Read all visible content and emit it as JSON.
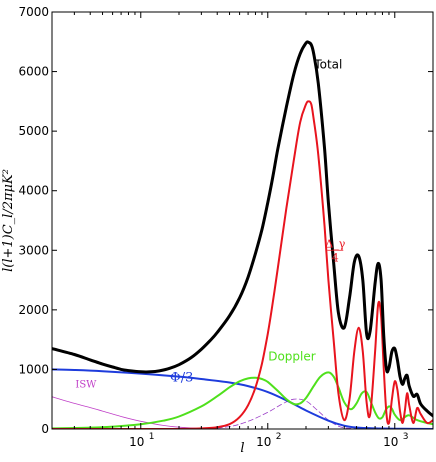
{
  "chart_data": {
    "type": "line",
    "xlabel": "l",
    "ylabel": "l(l+1)C_l/2πμK²",
    "xscale": "log",
    "xlim": [
      2,
      2000
    ],
    "ylim": [
      0,
      7000
    ],
    "xticks": [
      {
        "value": 10,
        "base": "10",
        "exp": "1"
      },
      {
        "value": 100,
        "base": "10",
        "exp": "2"
      },
      {
        "value": 1000,
        "base": "10",
        "exp": "3"
      }
    ],
    "yticks": [
      "0",
      "1000",
      "2000",
      "3000",
      "4000",
      "5000",
      "6000",
      "7000"
    ],
    "yticks_values": [
      0,
      1000,
      2000,
      3000,
      4000,
      5000,
      6000,
      7000
    ],
    "grid": false,
    "series": [
      {
        "name": "Total",
        "color": "#000000",
        "style": "solid",
        "x": [
          2,
          3,
          4,
          5,
          6,
          7,
          8,
          10,
          12,
          14,
          17,
          20,
          25,
          30,
          35,
          40,
          50,
          60,
          70,
          80,
          90,
          100,
          110,
          120,
          140,
          160,
          180,
          200,
          210,
          220,
          230,
          250,
          280,
          300,
          330,
          360,
          400,
          440,
          480,
          520,
          560,
          600,
          640,
          700,
          740,
          780,
          820,
          860,
          900,
          950,
          1000,
          1050,
          1100,
          1150,
          1200,
          1250,
          1300,
          1400,
          1500,
          1600,
          1800,
          2000
        ],
        "y": [
          1350,
          1250,
          1160,
          1090,
          1040,
          1000,
          980,
          960,
          960,
          975,
          1020,
          1080,
          1200,
          1340,
          1480,
          1620,
          1900,
          2200,
          2550,
          2950,
          3350,
          3800,
          4250,
          4700,
          5400,
          5950,
          6300,
          6480,
          6490,
          6450,
          6300,
          5800,
          4700,
          3800,
          2800,
          1950,
          1700,
          2200,
          2800,
          2900,
          2500,
          1600,
          1650,
          2450,
          2780,
          2500,
          1550,
          1000,
          1030,
          1300,
          1350,
          1150,
          880,
          750,
          850,
          900,
          720,
          550,
          580,
          420,
          300,
          220
        ]
      },
      {
        "name": "Δ_γ/4",
        "color": "#e8141e",
        "style": "solid",
        "x": [
          2,
          5,
          10,
          20,
          30,
          40,
          50,
          60,
          70,
          80,
          90,
          100,
          110,
          120,
          140,
          160,
          180,
          200,
          210,
          220,
          230,
          250,
          280,
          300,
          330,
          360,
          400,
          440,
          480,
          520,
          560,
          600,
          640,
          700,
          740,
          780,
          820,
          860,
          900,
          950,
          1000,
          1050,
          1100,
          1150,
          1200,
          1250,
          1300,
          1400,
          1500,
          1600,
          1800,
          2000
        ],
        "y": [
          0,
          0,
          0,
          0,
          10,
          30,
          80,
          200,
          400,
          700,
          1100,
          1600,
          2150,
          2700,
          3700,
          4500,
          5150,
          5450,
          5500,
          5450,
          5200,
          4600,
          3400,
          2500,
          1500,
          600,
          150,
          500,
          1300,
          1700,
          1300,
          450,
          250,
          1300,
          2100,
          1900,
          1000,
          250,
          100,
          500,
          800,
          650,
          300,
          100,
          300,
          600,
          400,
          100,
          350,
          250,
          100,
          150
        ]
      },
      {
        "name": "Doppler",
        "color": "#4fe01c",
        "style": "solid",
        "x": [
          2,
          5,
          10,
          15,
          20,
          30,
          40,
          50,
          60,
          70,
          80,
          90,
          100,
          120,
          140,
          160,
          180,
          200,
          230,
          260,
          300,
          330,
          360,
          400,
          450,
          500,
          550,
          600,
          650,
          700,
          750,
          800,
          850,
          900,
          950,
          1000,
          1100,
          1200,
          1300,
          1500,
          1800,
          2000
        ],
        "y": [
          10,
          30,
          80,
          140,
          210,
          380,
          550,
          700,
          800,
          850,
          860,
          840,
          790,
          640,
          500,
          420,
          430,
          520,
          720,
          880,
          950,
          880,
          700,
          450,
          330,
          430,
          600,
          620,
          450,
          280,
          180,
          200,
          320,
          380,
          340,
          240,
          150,
          200,
          230,
          150,
          100,
          80
        ]
      },
      {
        "name": "Φ/3",
        "color": "#1e3cdc",
        "style": "solid",
        "x": [
          2,
          3,
          5,
          10,
          20,
          30,
          50,
          70,
          100,
          150,
          200,
          300,
          400,
          500,
          700,
          1000,
          1500,
          2000
        ],
        "y": [
          1000,
          990,
          970,
          930,
          880,
          840,
          780,
          720,
          620,
          450,
          310,
          140,
          55,
          25,
          10,
          5,
          2,
          0
        ]
      },
      {
        "name": "ISW",
        "color": "#c040c8",
        "style": "solid",
        "x": [
          2,
          3,
          4,
          5,
          7,
          10,
          15,
          20,
          30,
          40,
          50,
          70,
          100
        ],
        "y": [
          540,
          430,
          360,
          300,
          210,
          130,
          60,
          30,
          10,
          5,
          2,
          0,
          0
        ]
      },
      {
        "name": "",
        "color": "#9c40c8",
        "style": "dashed",
        "x": [
          30,
          50,
          70,
          100,
          130,
          160,
          200,
          250,
          300,
          350,
          400,
          500,
          600
        ],
        "y": [
          0,
          40,
          130,
          280,
          420,
          500,
          470,
          300,
          150,
          60,
          20,
          5,
          0
        ]
      }
    ],
    "annotations": [
      {
        "text": "Total",
        "color": "#000000",
        "at": [
          300,
          6050
        ],
        "font": "sans"
      },
      {
        "text": "Doppler",
        "color": "#4fe01c",
        "at": [
          155,
          1150
        ],
        "font": "sans"
      },
      {
        "text": "Φ/3",
        "color": "#1e3cdc",
        "at": [
          21,
          800
        ],
        "font": "serif"
      },
      {
        "text": "ISW",
        "color": "#c040c8",
        "at": [
          3.7,
          700
        ],
        "font": "sans"
      }
    ],
    "fraction_label": {
      "numerator": "Δ_γ",
      "denominator": "4",
      "color": "#e8141e",
      "at": [
        340,
        3000
      ]
    }
  }
}
